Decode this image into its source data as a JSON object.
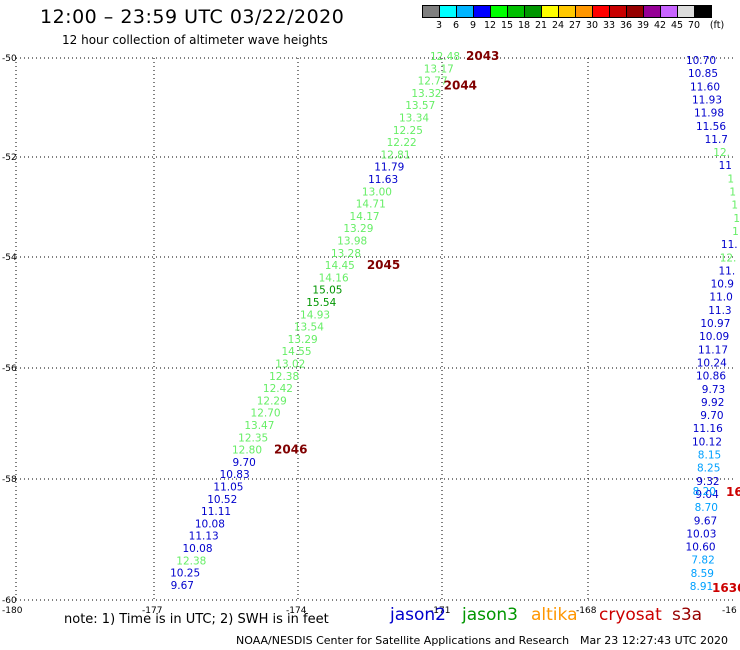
{
  "title": "12:00 – 23:59 UTC 03/22/2020",
  "subtitle": "12 hour collection of altimeter wave heights",
  "legend": {
    "colors": [
      "#7f7f7f",
      "#00ffff",
      "#00b4ff",
      "#0000ff",
      "#00ff00",
      "#00bf00",
      "#009600",
      "#ffff00",
      "#ffc800",
      "#ff9600",
      "#ff0000",
      "#c80000",
      "#960000",
      "#960096",
      "#c864ff",
      "#dcdcdc",
      "#000000"
    ],
    "labels": [
      "3",
      "6",
      "9",
      "12",
      "15",
      "18",
      "21",
      "24",
      "27",
      "30",
      "33",
      "36",
      "39",
      "42",
      "45",
      "70"
    ],
    "unit": "(ft)"
  },
  "axes": {
    "lon_ticks": [
      "-180",
      "-177",
      "-174",
      "-171",
      "-168",
      "-16"
    ],
    "lat_ticks": [
      "-50",
      "-52",
      "-54",
      "-56",
      "-58",
      "-60"
    ]
  },
  "note": "note:  1) Time is in UTC;  2) SWH is in feet",
  "satellites": [
    {
      "name": "jason2",
      "color": "#0000cc"
    },
    {
      "name": "jason3",
      "color": "#009600"
    },
    {
      "name": "altika",
      "color": "#ff9600"
    },
    {
      "name": "cryosat",
      "color": "#cc0000"
    },
    {
      "name": "s3a",
      "color": "#960000"
    }
  ],
  "footer": "NOAA/NESDIS Center for Satellite Applications and Research",
  "footer_time": "Mar 23 12:27:43 UTC 2020",
  "chart_data": {
    "type": "scatter",
    "track_a": [
      {
        "v": "12.48",
        "c": "#66ee66"
      },
      {
        "v": "13.17",
        "c": "#66ee66"
      },
      {
        "v": "12.77",
        "c": "#66ee66"
      },
      {
        "v": "13.32",
        "c": "#66ee66"
      },
      {
        "v": "13.57",
        "c": "#66ee66"
      },
      {
        "v": "13.34",
        "c": "#66ee66"
      },
      {
        "v": "12.25",
        "c": "#66ee66"
      },
      {
        "v": "12.22",
        "c": "#66ee66"
      },
      {
        "v": "12.81",
        "c": "#66ee66"
      },
      {
        "v": "11.79",
        "c": "#0000cc"
      },
      {
        "v": "11.63",
        "c": "#0000cc"
      },
      {
        "v": "13.00",
        "c": "#66ee66"
      },
      {
        "v": "14.71",
        "c": "#66ee66"
      },
      {
        "v": "14.17",
        "c": "#66ee66"
      },
      {
        "v": "13.29",
        "c": "#66ee66"
      },
      {
        "v": "13.98",
        "c": "#66ee66"
      },
      {
        "v": "13.28",
        "c": "#66ee66"
      },
      {
        "v": "14.45",
        "c": "#66ee66"
      },
      {
        "v": "14.16",
        "c": "#66ee66"
      },
      {
        "v": "15.05",
        "c": "#009600"
      },
      {
        "v": "15.54",
        "c": "#009600"
      },
      {
        "v": "14.93",
        "c": "#66ee66"
      },
      {
        "v": "13.54",
        "c": "#66ee66"
      },
      {
        "v": "13.29",
        "c": "#66ee66"
      },
      {
        "v": "14.55",
        "c": "#66ee66"
      },
      {
        "v": "13.02",
        "c": "#66ee66"
      },
      {
        "v": "12.38",
        "c": "#66ee66"
      },
      {
        "v": "12.42",
        "c": "#66ee66"
      },
      {
        "v": "12.29",
        "c": "#66ee66"
      },
      {
        "v": "12.70",
        "c": "#66ee66"
      },
      {
        "v": "13.47",
        "c": "#66ee66"
      },
      {
        "v": "12.35",
        "c": "#66ee66"
      },
      {
        "v": "12.80",
        "c": "#66ee66"
      },
      {
        "v": "9.70",
        "c": "#0000cc"
      },
      {
        "v": "10.83",
        "c": "#0000cc"
      },
      {
        "v": "11.05",
        "c": "#0000cc"
      },
      {
        "v": "10.52",
        "c": "#0000cc"
      },
      {
        "v": "11.11",
        "c": "#0000cc"
      },
      {
        "v": "10.08",
        "c": "#0000cc"
      },
      {
        "v": "11.13",
        "c": "#0000cc"
      },
      {
        "v": "10.08",
        "c": "#0000cc"
      },
      {
        "v": "12.38",
        "c": "#66ee66"
      },
      {
        "v": "10.25",
        "c": "#0000cc"
      },
      {
        "v": "9.67",
        "c": "#0000cc"
      }
    ],
    "track_a_times": [
      {
        "t": "2043",
        "idx": 0
      },
      {
        "t": "2044",
        "idx": 2
      },
      {
        "t": "2045",
        "idx": 17
      },
      {
        "t": "2046",
        "idx": 32
      }
    ],
    "track_b": [
      {
        "v": "10.70",
        "c": "#0000cc"
      },
      {
        "v": "10.85",
        "c": "#0000cc"
      },
      {
        "v": "11.60",
        "c": "#0000cc"
      },
      {
        "v": "11.93",
        "c": "#0000cc"
      },
      {
        "v": "11.98",
        "c": "#0000cc"
      },
      {
        "v": "11.56",
        "c": "#0000cc"
      },
      {
        "v": "11.7",
        "c": "#0000cc"
      },
      {
        "v": "12.",
        "c": "#66ee66"
      },
      {
        "v": "11",
        "c": "#0000cc"
      },
      {
        "v": "1",
        "c": "#66ee66"
      },
      {
        "v": "1",
        "c": "#66ee66"
      },
      {
        "v": "1",
        "c": "#66ee66"
      },
      {
        "v": "1",
        "c": "#66ee66"
      },
      {
        "v": "1",
        "c": "#66ee66"
      },
      {
        "v": "11.",
        "c": "#0000cc"
      },
      {
        "v": "12.",
        "c": "#66ee66"
      },
      {
        "v": "11.",
        "c": "#0000cc"
      },
      {
        "v": "10.9",
        "c": "#0000cc"
      },
      {
        "v": "11.0",
        "c": "#0000cc"
      },
      {
        "v": "11.3",
        "c": "#0000cc"
      },
      {
        "v": "10.97",
        "c": "#0000cc"
      },
      {
        "v": "10.09",
        "c": "#0000cc"
      },
      {
        "v": "11.17",
        "c": "#0000cc"
      },
      {
        "v": "10.24",
        "c": "#0000cc"
      },
      {
        "v": "10.86",
        "c": "#0000cc"
      },
      {
        "v": "9.73",
        "c": "#0000cc"
      },
      {
        "v": "9.92",
        "c": "#0000cc"
      },
      {
        "v": "9.70",
        "c": "#0000cc"
      },
      {
        "v": "11.16",
        "c": "#0000cc"
      },
      {
        "v": "10.12",
        "c": "#0000cc"
      },
      {
        "v": "8.15",
        "c": "#00a0ff"
      },
      {
        "v": "8.25",
        "c": "#00a0ff"
      },
      {
        "v": "9.32",
        "c": "#0000cc"
      },
      {
        "v": "9.04",
        "c": "#0000cc"
      },
      {
        "v": "8.70",
        "c": "#00a0ff"
      },
      {
        "v": "9.67",
        "c": "#0000cc"
      },
      {
        "v": "10.03",
        "c": "#0000cc"
      },
      {
        "v": "10.60",
        "c": "#0000cc"
      },
      {
        "v": "7.82",
        "c": "#00a0ff"
      },
      {
        "v": "8.59",
        "c": "#00a0ff"
      },
      {
        "v": "8.91",
        "c": "#00a0ff"
      }
    ],
    "track_b_extra": [
      {
        "v": "8.20",
        "c": "#00a0ff"
      }
    ],
    "track_b_times": [
      {
        "t": "16",
        "c": "#cc0000"
      },
      {
        "t": "1636",
        "c": "#cc0000"
      }
    ]
  }
}
